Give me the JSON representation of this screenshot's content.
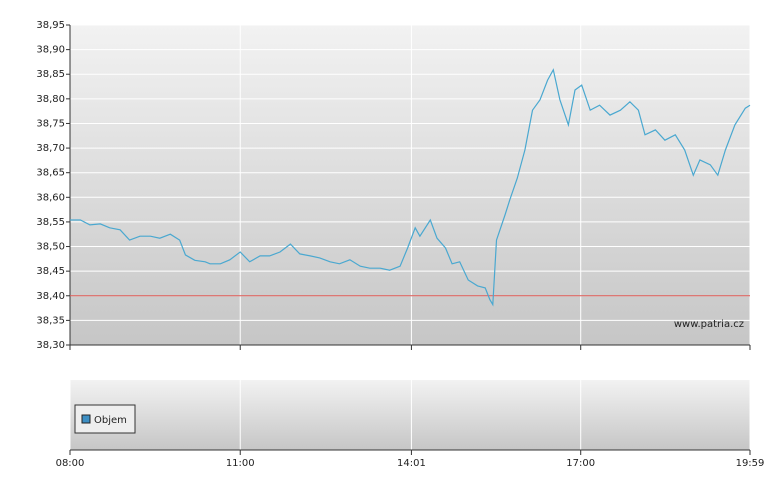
{
  "chart_data": [
    {
      "type": "line",
      "xlim": [
        480,
        1199
      ],
      "ylim": [
        38.3,
        38.95
      ],
      "yticks": [
        {
          "value": 38.3,
          "label": "38,30"
        },
        {
          "value": 38.35,
          "label": "38,35"
        },
        {
          "value": 38.4,
          "label": "38,40"
        },
        {
          "value": 38.45,
          "label": "38,45"
        },
        {
          "value": 38.5,
          "label": "38,50"
        },
        {
          "value": 38.55,
          "label": "38,55"
        },
        {
          "value": 38.6,
          "label": "38,60"
        },
        {
          "value": 38.65,
          "label": "38,65"
        },
        {
          "value": 38.7,
          "label": "38,70"
        },
        {
          "value": 38.75,
          "label": "38,75"
        },
        {
          "value": 38.8,
          "label": "38,80"
        },
        {
          "value": 38.85,
          "label": "38,85"
        },
        {
          "value": 38.9,
          "label": "38,90"
        },
        {
          "value": 38.95,
          "label": "38,95"
        }
      ],
      "grid": true,
      "reference_line": {
        "value": 38.4,
        "color": "#d9534f"
      },
      "watermark": "www.patria.cz",
      "x": [
        480,
        491,
        501,
        512,
        522,
        533,
        543,
        554,
        565,
        575,
        586,
        596,
        602,
        612,
        623,
        628,
        639,
        649,
        660,
        670,
        681,
        691,
        702,
        713,
        723,
        734,
        744,
        755,
        765,
        776,
        787,
        797,
        808,
        818,
        829,
        837,
        845,
        850,
        861,
        868,
        877,
        884,
        892,
        901,
        911,
        919,
        924,
        927,
        931,
        940,
        945,
        953,
        961,
        969,
        977,
        985,
        991,
        998,
        1007,
        1014,
        1021,
        1030,
        1040,
        1051,
        1062,
        1072,
        1081,
        1088,
        1099,
        1109,
        1120,
        1130,
        1139,
        1146,
        1157,
        1165,
        1173,
        1183,
        1194,
        1199
      ],
      "series": [
        {
          "color": "#4aa8d0",
          "values": [
            38.554,
            38.554,
            38.544,
            38.546,
            38.538,
            38.534,
            38.513,
            38.521,
            38.521,
            38.517,
            38.525,
            38.513,
            38.483,
            38.472,
            38.469,
            38.465,
            38.465,
            38.473,
            38.489,
            38.469,
            38.481,
            38.481,
            38.489,
            38.505,
            38.485,
            38.481,
            38.477,
            38.469,
            38.465,
            38.473,
            38.46,
            38.456,
            38.456,
            38.452,
            38.46,
            38.497,
            38.538,
            38.521,
            38.554,
            38.517,
            38.497,
            38.465,
            38.469,
            38.432,
            38.42,
            38.416,
            38.392,
            38.382,
            38.513,
            38.564,
            38.595,
            38.639,
            38.696,
            38.777,
            38.798,
            38.838,
            38.859,
            38.798,
            38.747,
            38.818,
            38.828,
            38.777,
            38.787,
            38.767,
            38.777,
            38.794,
            38.777,
            38.727,
            38.737,
            38.716,
            38.727,
            38.696,
            38.645,
            38.676,
            38.666,
            38.645,
            38.696,
            38.747,
            38.781,
            38.787
          ]
        }
      ]
    },
    {
      "type": "bar",
      "xlim": [
        480,
        1199
      ],
      "xticks": [
        {
          "value": 480,
          "label": "08:00"
        },
        {
          "value": 660,
          "label": "11:00"
        },
        {
          "value": 841,
          "label": "14:01"
        },
        {
          "value": 1020,
          "label": "17:00"
        },
        {
          "value": 1199,
          "label": "19:59"
        }
      ],
      "series": [
        {
          "name": "Objem",
          "color": "#3d8fc4",
          "values": []
        }
      ]
    }
  ]
}
